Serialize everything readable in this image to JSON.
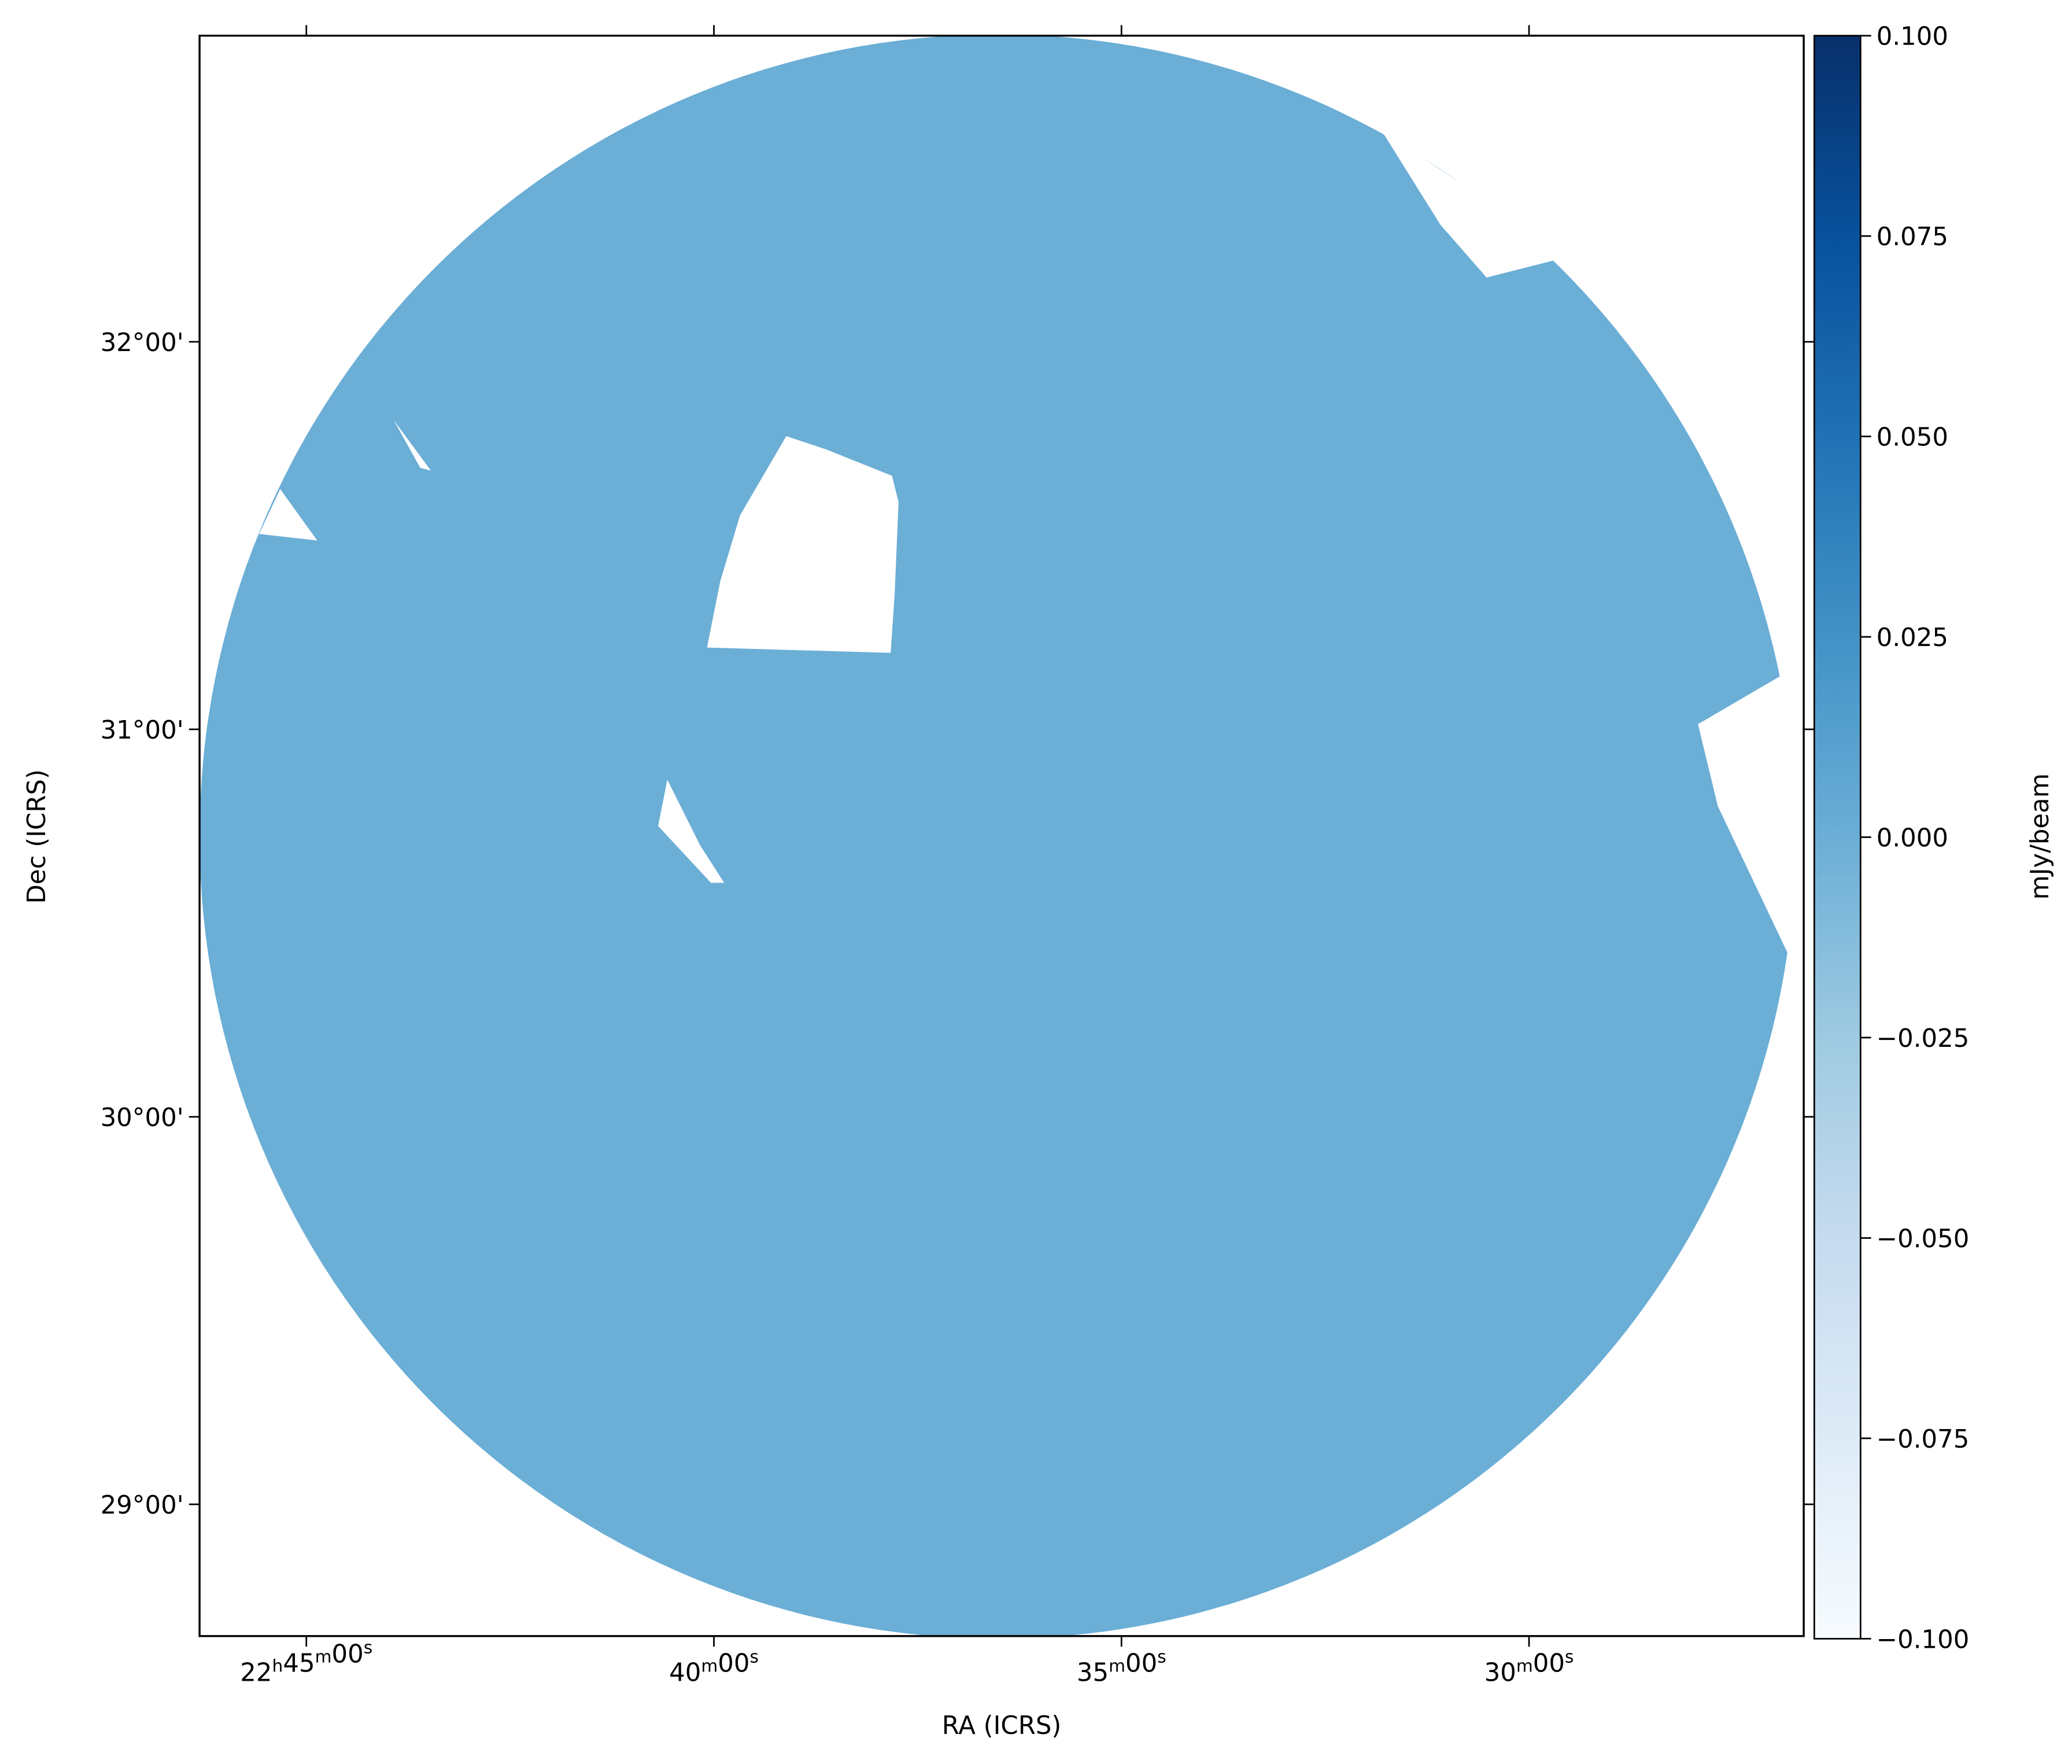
{
  "chart_data": {
    "type": "image",
    "x_label": "RA (ICRS)",
    "y_label": "Dec (ICRS)",
    "color": "#6baed6",
    "xlim": [
      46.31,
      26.63
    ],
    "xticks": [
      {
        "value": 45,
        "label": "22h45m00s"
      },
      {
        "value": 40,
        "label": "40m00s"
      },
      {
        "value": 35,
        "label": "35m00s"
      },
      {
        "value": 30,
        "label": "30m00s"
      }
    ],
    "ylim": [
      28.66,
      32.79
    ],
    "yticks": [
      {
        "value": 29,
        "label": "29°00'"
      },
      {
        "value": 30,
        "label": "30°00'"
      },
      {
        "value": 31,
        "label": "31°00'"
      },
      {
        "value": 32,
        "label": "32°00'"
      }
    ],
    "colorbar": {
      "label": "mJy/beam",
      "lim": [
        -0.1,
        0.1
      ],
      "colors": [
        "#f7fbff",
        "#deebf7",
        "#c6dbef",
        "#9ecae1",
        "#6baed6",
        "#4292c6",
        "#2171b5",
        "#08519c",
        "#08306b"
      ],
      "ticks": [
        {
          "value": -0.1,
          "label": "−0.100"
        },
        {
          "value": -0.075,
          "label": "−0.075"
        },
        {
          "value": -0.05,
          "label": "−0.050"
        },
        {
          "value": -0.025,
          "label": "−0.025"
        },
        {
          "value": 0,
          "label": "0.000"
        },
        {
          "value": 0.025,
          "label": "0.025"
        },
        {
          "value": 0.05,
          "label": "0.050"
        },
        {
          "value": 0.075,
          "label": "0.075"
        },
        {
          "value": 0.1,
          "label": "0.100"
        }
      ]
    }
  }
}
